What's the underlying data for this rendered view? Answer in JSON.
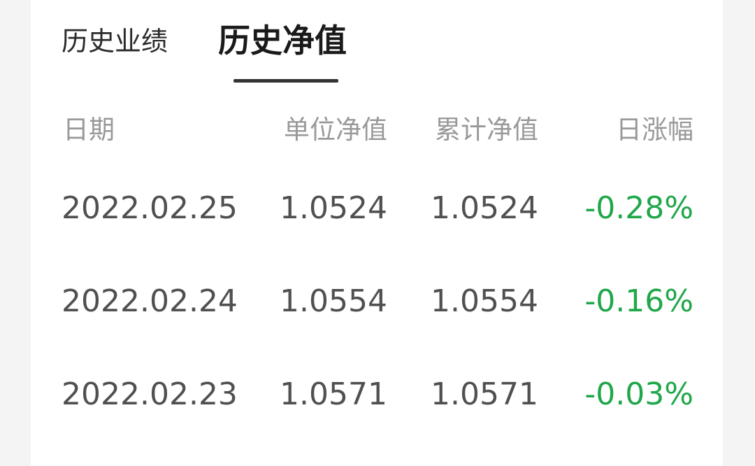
{
  "tabs": {
    "performance": "历史业绩",
    "nav": "历史净值"
  },
  "table": {
    "headers": {
      "date": "日期",
      "unit_nav": "单位净值",
      "acc_nav": "累计净值",
      "daily_change": "日涨幅"
    },
    "rows": [
      {
        "date": "2022.02.25",
        "unit_nav": "1.0524",
        "acc_nav": "1.0524",
        "daily_change": "-0.28%"
      },
      {
        "date": "2022.02.24",
        "unit_nav": "1.0554",
        "acc_nav": "1.0554",
        "daily_change": "-0.16%"
      },
      {
        "date": "2022.02.23",
        "unit_nav": "1.0571",
        "acc_nav": "1.0571",
        "daily_change": "-0.03%"
      }
    ]
  },
  "colors": {
    "negative_change": "#1fa74a",
    "active_underline": "#333333"
  }
}
